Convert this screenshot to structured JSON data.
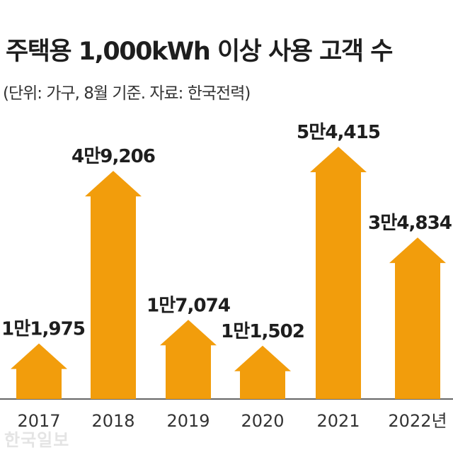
{
  "title": "주택용 1,000kWh 이상 사용 고객 수",
  "subtitle": "(단위: 가구, 8월 기준. 자료: 한국전력)",
  "watermark": "한국일보",
  "colors": {
    "arrow": "#F29D0C",
    "text": "#1E1E1E",
    "axis": "#333333"
  },
  "chart_data": {
    "type": "bar",
    "categories": [
      "2017",
      "2018",
      "2019",
      "2020",
      "2021",
      "2022년"
    ],
    "values": [
      11975,
      49206,
      17074,
      11502,
      54415,
      34834
    ],
    "value_labels": [
      "1만1,975",
      "4만9,206",
      "1만7,074",
      "1만1,502",
      "5만4,415",
      "3만4,834"
    ],
    "mark_shape": "arrow",
    "title": "주택용 1,000kWh 이상 사용 고객 수",
    "xlabel": "",
    "ylabel": "",
    "grid": false,
    "legend": "none"
  }
}
